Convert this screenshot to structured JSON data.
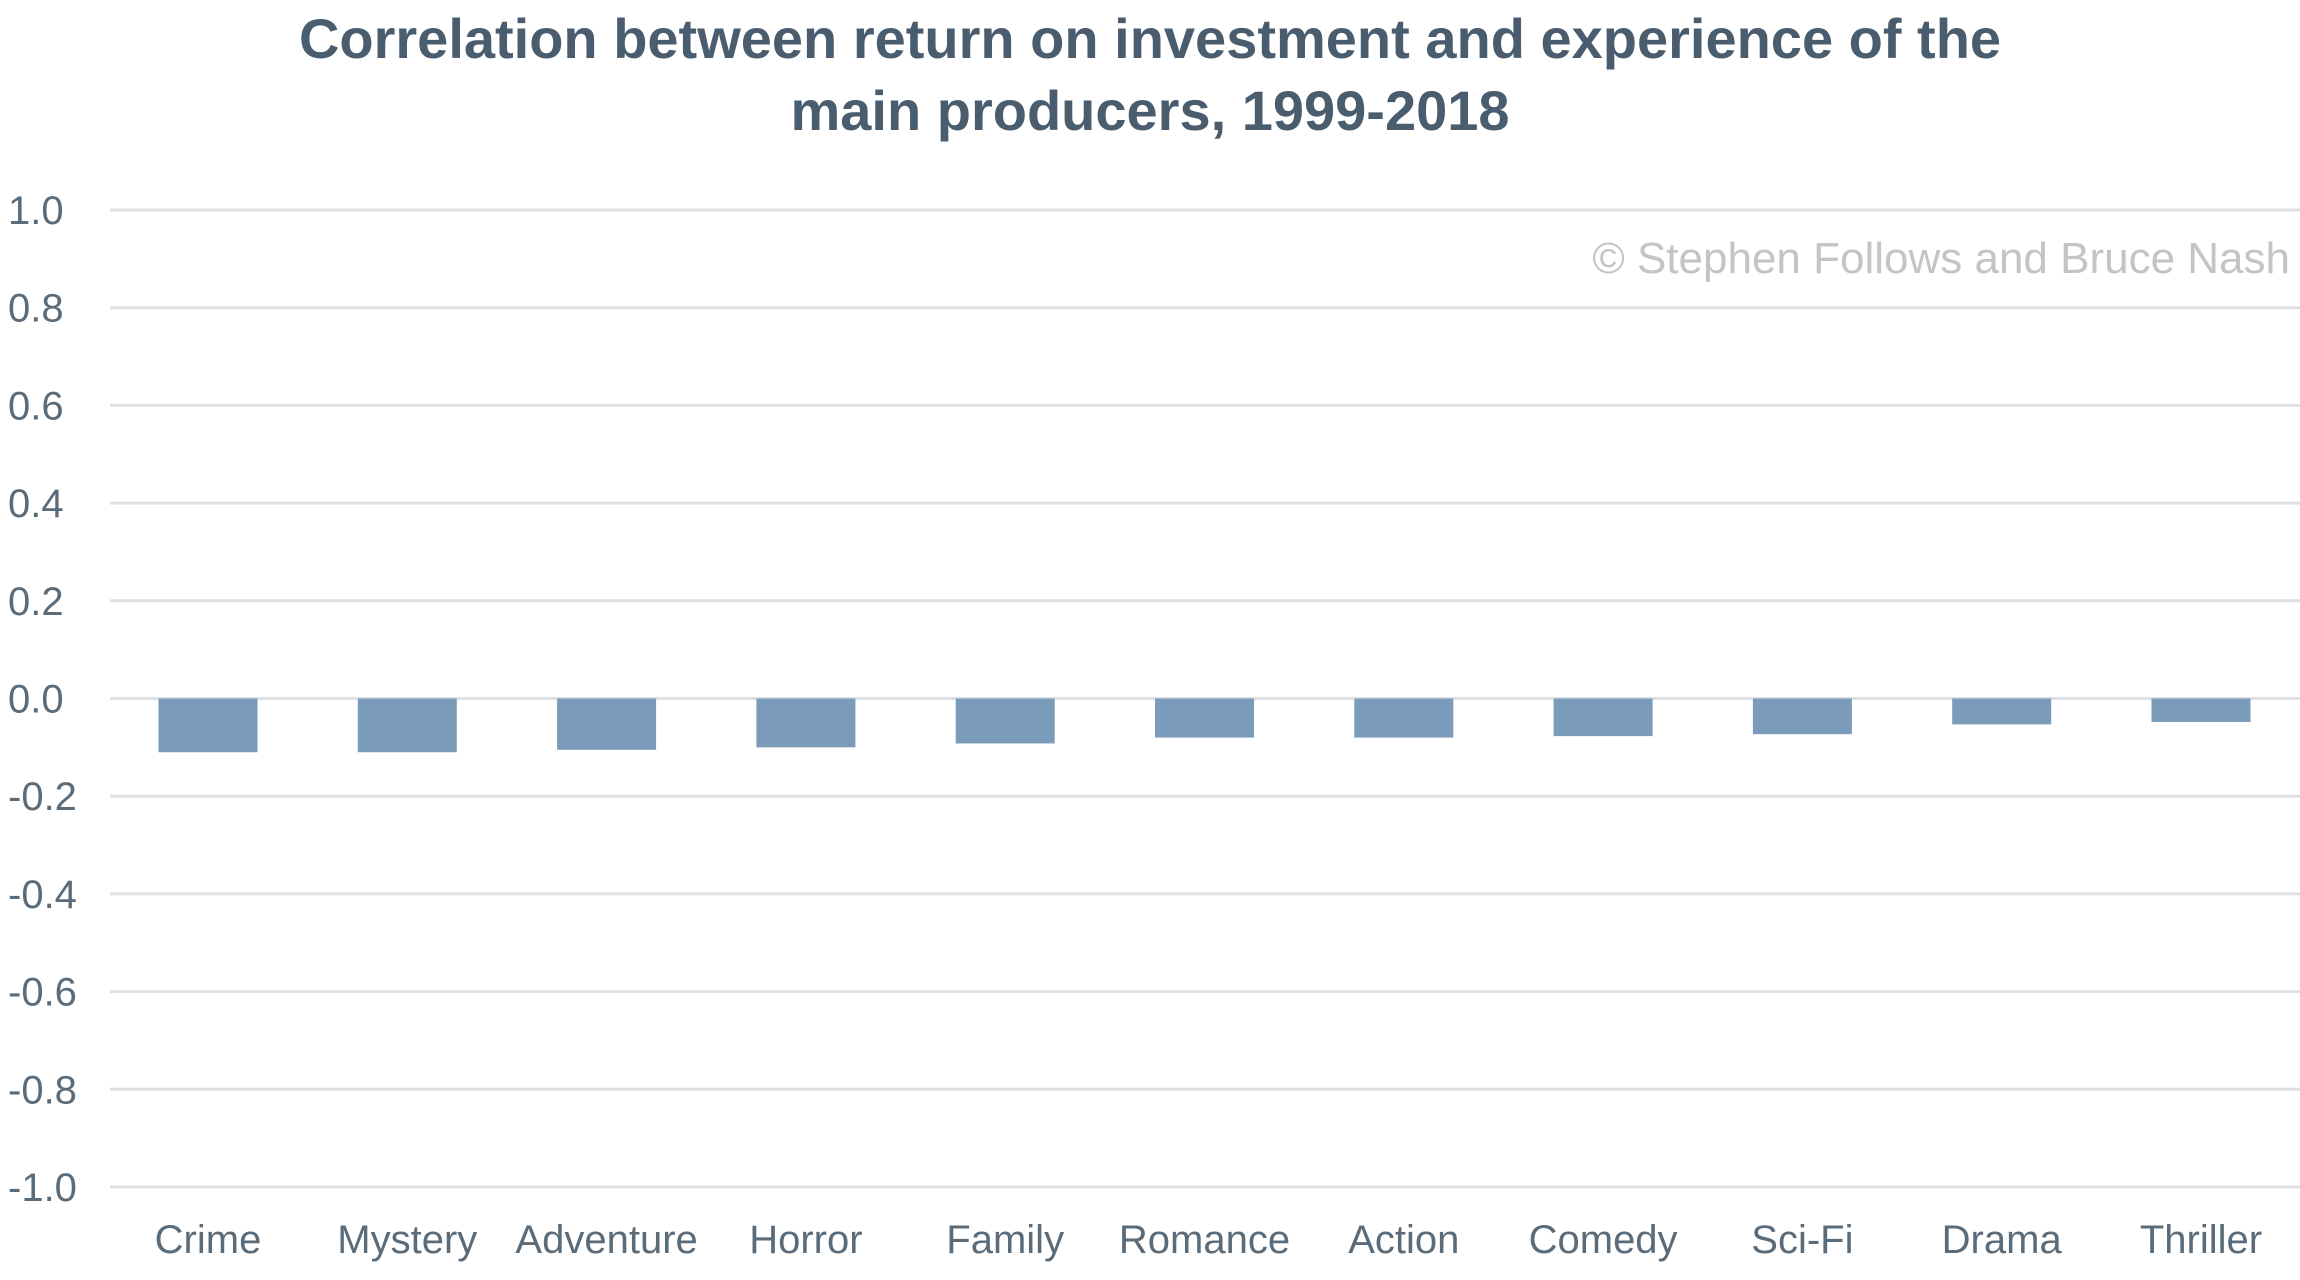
{
  "chart_data": {
    "type": "bar",
    "title": "Correlation between return on investment and experience of the main producers, 1999-2018",
    "title_lines": [
      "Correlation between return on investment and experience of the",
      "main producers, 1999-2018"
    ],
    "categories": [
      "Crime",
      "Mystery",
      "Adventure",
      "Horror",
      "Family",
      "Romance",
      "Action",
      "Comedy",
      "Sci-Fi",
      "Drama",
      "Thriller"
    ],
    "values": [
      -0.11,
      -0.11,
      -0.105,
      -0.1,
      -0.092,
      -0.08,
      -0.08,
      -0.077,
      -0.073,
      -0.053,
      -0.048
    ],
    "ylim": [
      -1.0,
      1.0
    ],
    "yticks": [
      1.0,
      0.8,
      0.6,
      0.4,
      0.2,
      0.0,
      -0.2,
      -0.4,
      -0.6,
      -0.8,
      -1.0
    ],
    "ytick_labels": [
      "1.0",
      "0.8",
      "0.6",
      "0.4",
      "0.2",
      "0.0",
      "-0.2",
      "-0.4",
      "-0.6",
      "-0.8",
      "-1.0"
    ],
    "xlabel": "",
    "ylabel": "",
    "grid": true,
    "watermark": "© Stephen Follows and Bruce Nash",
    "bar_color": "#7a9cba",
    "title_color": "#4a5d6e",
    "grid_color": "#dde1e6"
  }
}
